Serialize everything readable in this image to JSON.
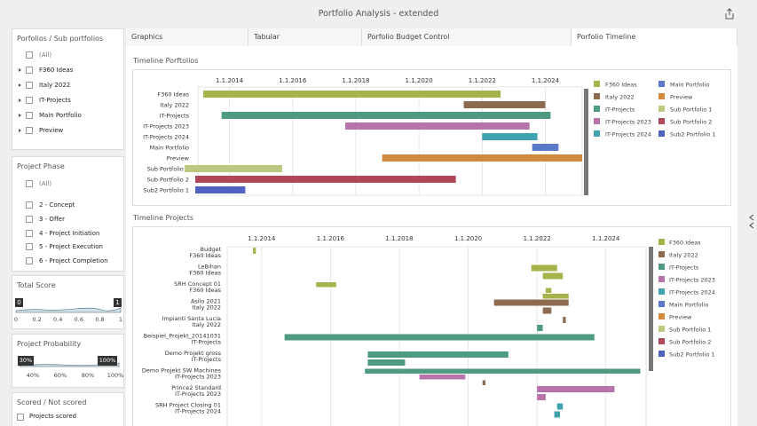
{
  "app": {
    "title": "Portfolio Analysis - extended"
  },
  "portfolios_filter": {
    "title": "Porfolios / Sub portfolios",
    "all_label": "(All)",
    "items": [
      "F360 Ideas",
      "Italy 2022",
      "IT-Projects",
      "Main Portfolio",
      "Preview"
    ]
  },
  "phase_filter": {
    "title": "Project Phase",
    "all_label": "(All)",
    "items": [
      "2 - Concept",
      "3 - Offer",
      "4 - Project Initiation",
      "5 - Project Execution",
      "6 - Project Completion"
    ]
  },
  "total_score": {
    "title": "Total Score",
    "min_label": "0",
    "max_label": "1",
    "ticks": [
      "0",
      "0.2",
      "0.4",
      "0.6",
      "0.8",
      "1"
    ],
    "range": [
      0,
      1
    ]
  },
  "probability": {
    "title": "Project Probability",
    "min_label": "30%",
    "max_label": "100%",
    "ticks": [
      "40%",
      "60%",
      "80%",
      "100%"
    ],
    "range": [
      30,
      100
    ]
  },
  "scored": {
    "title": "Scored / Not scored",
    "items": [
      "Projects scored"
    ]
  },
  "tabs": [
    {
      "label": "Graphics",
      "active": false
    },
    {
      "label": "Tabular",
      "active": false
    },
    {
      "label": "Porfolio Budget Control",
      "active": false
    },
    {
      "label": "Porfolio Timeline",
      "active": true
    }
  ],
  "chart_data": [
    {
      "type": "gantt",
      "title": "Timeline Porftolios",
      "x_ticks": [
        "1.1.2014",
        "1.1.2016",
        "1.1.2018",
        "1.1.2020",
        "1.1.2022",
        "1.1.2024"
      ],
      "x_range": [
        "2013-01",
        "2025-03"
      ],
      "rows": [
        {
          "label": "F360 Ideas",
          "start": "2013-03",
          "end": "2022-08",
          "color": "#a6b24a"
        },
        {
          "label": "Italy 2022",
          "start": "2021-06",
          "end": "2024-01",
          "color": "#8c6b4f"
        },
        {
          "label": "IT-Projects",
          "start": "2013-10",
          "end": "2024-03",
          "color": "#4f9a82"
        },
        {
          "label": "IT-Projects 2023",
          "start": "2017-09",
          "end": "2023-07",
          "color": "#b673ac"
        },
        {
          "label": "IT-Projects 2024",
          "start": "2022-01",
          "end": "2023-10",
          "color": "#3fa3b0"
        },
        {
          "label": "Main Portfolio",
          "start": "2023-08",
          "end": "2024-06",
          "color": "#5b79c7"
        },
        {
          "label": "Preview",
          "start": "2018-11",
          "end": "2025-03",
          "color": "#d18a3e"
        },
        {
          "label": "Sub Portfolio 1",
          "start": "2012-08",
          "end": "2015-09",
          "color": "#bcc87e"
        },
        {
          "label": "Sub Portfolio 2",
          "start": "2012-12",
          "end": "2021-03",
          "color": "#b0485a"
        },
        {
          "label": "Sub2 Portfolio 1",
          "start": "2012-12",
          "end": "2014-07",
          "color": "#4f62c2"
        }
      ],
      "legend": [
        {
          "name": "F360 Ideas",
          "color": "#a6b24a"
        },
        {
          "name": "Main Portfolio",
          "color": "#5b79c7"
        },
        {
          "name": "Italy 2022",
          "color": "#8c6b4f"
        },
        {
          "name": "Preview",
          "color": "#d18a3e"
        },
        {
          "name": "IT-Projects",
          "color": "#4f9a82"
        },
        {
          "name": "Sub Portfolio 1",
          "color": "#bcc87e"
        },
        {
          "name": "IT-Projects 2023",
          "color": "#b673ac"
        },
        {
          "name": "Sub Portfolio 2",
          "color": "#b0485a"
        },
        {
          "name": "IT-Projects 2024",
          "color": "#3fa3b0"
        },
        {
          "name": "Sub2 Portfolio 1",
          "color": "#4f62c2"
        }
      ]
    },
    {
      "type": "gantt",
      "title": "Timeline Projects",
      "x_ticks": [
        "1.1.2014",
        "1.1.2016",
        "1.1.2018",
        "1.1.2020",
        "1.1.2022",
        "1.1.2024"
      ],
      "x_range": [
        "2013-01",
        "2025-03"
      ],
      "groups": [
        {
          "name": "Budget",
          "portfolio": "F360 Ideas",
          "bars": [
            {
              "start": "2013-10",
              "end": "2013-11",
              "color": "#a6b24a"
            }
          ]
        },
        {
          "name": "LeBihan",
          "portfolio": "F360 Ideas",
          "bars": [
            {
              "start": "2021-11",
              "end": "2022-08",
              "color": "#a6b24a"
            },
            {
              "start": "2022-03",
              "end": "2022-10",
              "color": "#a6b24a"
            }
          ]
        },
        {
          "name": "SRH Concept 01",
          "portfolio": "F360 Ideas",
          "bars": [
            {
              "start": "2015-08",
              "end": "2016-03",
              "color": "#a6b24a"
            },
            {
              "start": "2022-04",
              "end": "2022-06",
              "color": "#a6b24a"
            },
            {
              "start": "2022-03",
              "end": "2022-12",
              "color": "#a6b24a"
            }
          ]
        },
        {
          "name": "Asilo 2021",
          "portfolio": "Italy 2022",
          "bars": [
            {
              "start": "2020-10",
              "end": "2022-12",
              "color": "#8c6b4f"
            },
            {
              "start": "2022-03",
              "end": "2022-06",
              "color": "#8c6b4f"
            }
          ]
        },
        {
          "name": "Impianti Santa Lucia",
          "portfolio": "Italy 2022",
          "bars": [
            {
              "start": "2022-10",
              "end": "2022-11",
              "color": "#8c6b4f"
            },
            {
              "start": "2022-01",
              "end": "2022-03",
              "color": "#4f9a82"
            }
          ]
        },
        {
          "name": "Beispiel_Projekt_20141031",
          "portfolio": "IT-Projects",
          "bars": [
            {
              "start": "2014-09",
              "end": "2023-09",
              "color": "#4f9a82"
            }
          ]
        },
        {
          "name": "Demo Projekt gross",
          "portfolio": "IT-Projects",
          "bars": [
            {
              "start": "2017-02",
              "end": "2021-03",
              "color": "#4f9a82"
            },
            {
              "start": "2017-02",
              "end": "2018-03",
              "color": "#4f9a82"
            }
          ]
        },
        {
          "name": "Demo Projekt SW Machines",
          "portfolio": "IT-Projects 2023",
          "bars": [
            {
              "start": "2017-01",
              "end": "2025-01",
              "color": "#4f9a82"
            },
            {
              "start": "2018-08",
              "end": "2019-12",
              "color": "#b673ac"
            },
            {
              "start": "2020-06",
              "end": "2020-07",
              "color": "#8c6b4f"
            }
          ]
        },
        {
          "name": "Prince2 Standard",
          "portfolio": "IT-Projects 2023",
          "bars": [
            {
              "start": "2022-01",
              "end": "2024-04",
              "color": "#b673ac"
            },
            {
              "start": "2022-01",
              "end": "2022-04",
              "color": "#b673ac"
            }
          ]
        },
        {
          "name": "SRH Project Closing 01",
          "portfolio": "IT-Projects 2024",
          "bars": [
            {
              "start": "2022-08",
              "end": "2022-10",
              "color": "#3fa3b0"
            },
            {
              "start": "2022-07",
              "end": "2022-09",
              "color": "#3fa3b0"
            }
          ]
        }
      ],
      "legend": [
        {
          "name": "F360 Ideas",
          "color": "#a6b24a"
        },
        {
          "name": "Italy 2022",
          "color": "#8c6b4f"
        },
        {
          "name": "IT-Projects",
          "color": "#4f9a82"
        },
        {
          "name": "IT-Projects 2023",
          "color": "#b673ac"
        },
        {
          "name": "IT-Projects 2024",
          "color": "#3fa3b0"
        },
        {
          "name": "Main Portfolio",
          "color": "#5b79c7"
        },
        {
          "name": "Preview",
          "color": "#d18a3e"
        },
        {
          "name": "Sub Portfolio 1",
          "color": "#bcc87e"
        },
        {
          "name": "Sub Portfolio 2",
          "color": "#b0485a"
        },
        {
          "name": "Sub2 Portfolio 1",
          "color": "#4f62c2"
        }
      ]
    }
  ]
}
